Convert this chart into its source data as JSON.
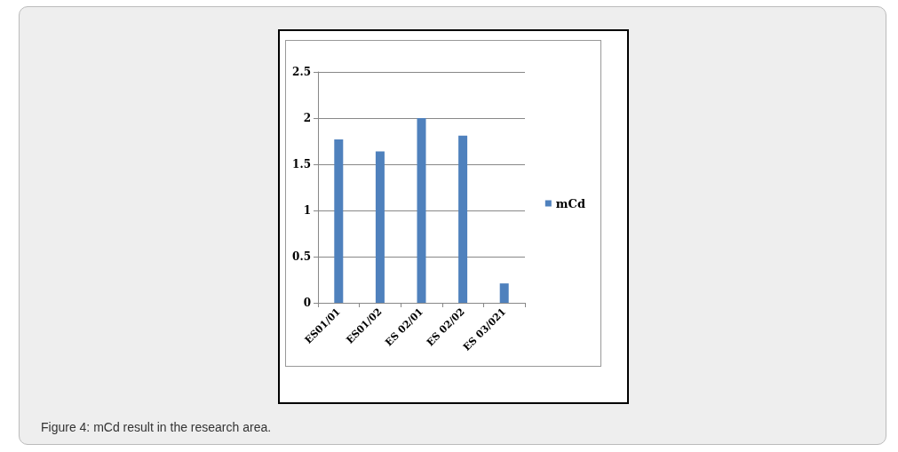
{
  "chart_data": {
    "type": "bar",
    "categories": [
      "ES01/01",
      "ES01/02",
      "ES 02/01",
      "ES 02/02",
      "ES 03/021"
    ],
    "series": [
      {
        "name": "mCd",
        "color": "#4f81bd",
        "values": [
          1.77,
          1.64,
          2.0,
          1.81,
          0.21
        ]
      }
    ],
    "ylim": [
      0,
      2.5
    ],
    "yticks": [
      0,
      0.5,
      1,
      1.5,
      2,
      2.5
    ],
    "grid": "y",
    "legend": "right",
    "annotations": [
      "Figure 4: mCd result in the research area."
    ]
  }
}
